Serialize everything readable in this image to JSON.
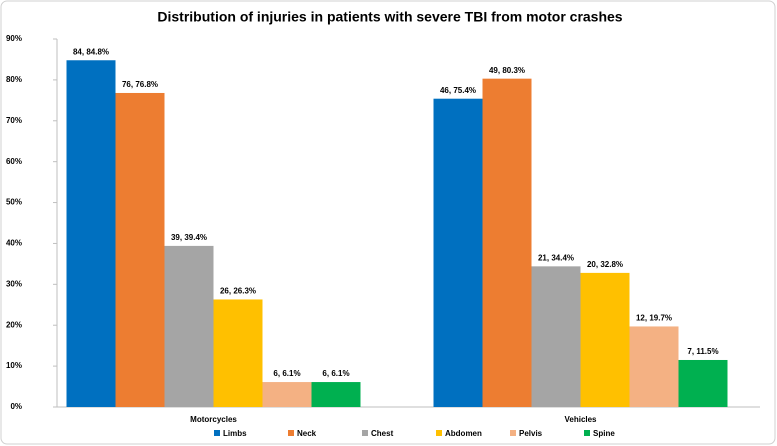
{
  "chart_data": {
    "type": "bar",
    "title": "Distribution of injuries in patients with severe TBI from motor crashes",
    "categories": [
      "Motorcycles",
      "Vehicles"
    ],
    "series": [
      {
        "name": "Limbs",
        "color": "#0070c0",
        "values": [
          84.8,
          75.4
        ],
        "value_labels": [
          "84, 84.8%",
          "46, 75.4%"
        ]
      },
      {
        "name": "Neck",
        "color": "#ed7d31",
        "values": [
          76.8,
          80.3
        ],
        "value_labels": [
          "76, 76.8%",
          "49, 80.3%"
        ]
      },
      {
        "name": "Chest",
        "color": "#a5a5a5",
        "values": [
          39.4,
          34.4
        ],
        "value_labels": [
          "39, 39.4%",
          "21, 34.4%"
        ]
      },
      {
        "name": "Abdomen",
        "color": "#ffc000",
        "values": [
          26.3,
          32.8
        ],
        "value_labels": [
          "26, 26.3%",
          "20, 32.8%"
        ]
      },
      {
        "name": "Pelvis",
        "color": "#f4b183",
        "values": [
          6.1,
          19.7
        ],
        "value_labels": [
          "6, 6.1%",
          "12, 19.7%"
        ]
      },
      {
        "name": "Spine",
        "color": "#00b050",
        "values": [
          6.1,
          11.5
        ],
        "value_labels": [
          "6, 6.1%",
          "7, 11.5%"
        ]
      }
    ],
    "ylim": [
      0,
      90
    ],
    "yticks": [
      {
        "value": 0,
        "label": "0%"
      },
      {
        "value": 10,
        "label": "10%"
      },
      {
        "value": 20,
        "label": "20%"
      },
      {
        "value": 30,
        "label": "30%"
      },
      {
        "value": 40,
        "label": "40%"
      },
      {
        "value": 50,
        "label": "50%"
      },
      {
        "value": 60,
        "label": "60%"
      },
      {
        "value": 70,
        "label": "70%"
      },
      {
        "value": 80,
        "label": "80%"
      },
      {
        "value": 90,
        "label": "90%"
      }
    ],
    "legend": "bottom"
  }
}
